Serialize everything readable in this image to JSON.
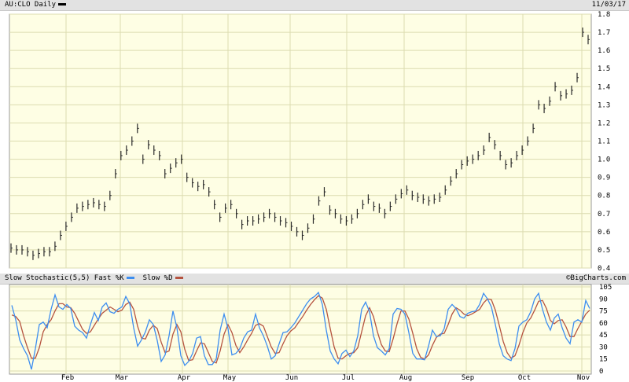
{
  "header": {
    "symbol_label": "AU:CLO Daily",
    "date": "11/03/17",
    "legend_color": "#000000"
  },
  "indicator_header": {
    "title": "Slow Stochastic(5,5)",
    "fast_label": "Fast %K",
    "slow_label": "Slow %D",
    "copyright": "©BigCharts.com"
  },
  "colors": {
    "panel_bg": "#fefee4",
    "grid": "#dcdcb0",
    "price_bar": "#2a2a2a",
    "fast_k": "#3d8ef0",
    "slow_d": "#b5533f"
  },
  "chart_data": [
    {
      "type": "bar",
      "title": "AU:CLO Daily",
      "ylim": [
        0.4,
        1.8
      ],
      "yticks": [
        "0.4",
        "0.5",
        "0.6",
        "0.7",
        "0.8",
        "0.9",
        "1.0",
        "1.1",
        "1.2",
        "1.3",
        "1.4",
        "1.5",
        "1.6",
        "1.7",
        "1.8"
      ],
      "grid": true,
      "series": [
        {
          "name": "AU:CLO",
          "close": [
            0.51,
            0.5,
            0.5,
            0.49,
            0.47,
            0.48,
            0.49,
            0.49,
            0.52,
            0.58,
            0.63,
            0.68,
            0.73,
            0.74,
            0.75,
            0.76,
            0.75,
            0.74,
            0.8,
            0.92,
            1.02,
            1.05,
            1.1,
            1.17,
            1.0,
            1.08,
            1.05,
            1.02,
            0.92,
            0.95,
            0.98,
            1.0,
            0.9,
            0.87,
            0.85,
            0.86,
            0.82,
            0.75,
            0.68,
            0.73,
            0.75,
            0.7,
            0.64,
            0.66,
            0.66,
            0.67,
            0.68,
            0.7,
            0.68,
            0.66,
            0.65,
            0.63,
            0.6,
            0.58,
            0.62,
            0.67,
            0.77,
            0.82,
            0.72,
            0.7,
            0.67,
            0.66,
            0.67,
            0.7,
            0.75,
            0.78,
            0.74,
            0.73,
            0.7,
            0.74,
            0.78,
            0.81,
            0.83,
            0.8,
            0.79,
            0.78,
            0.77,
            0.78,
            0.79,
            0.83,
            0.88,
            0.92,
            0.97,
            0.99,
            1.0,
            1.02,
            1.05,
            1.12,
            1.08,
            1.02,
            0.97,
            0.98,
            1.02,
            1.05,
            1.1,
            1.17,
            1.3,
            1.28,
            1.32,
            1.4,
            1.35,
            1.36,
            1.38,
            1.45,
            1.7,
            1.66
          ]
        }
      ]
    },
    {
      "type": "line",
      "title": "Slow Stochastic(5,5)",
      "ylim": [
        0,
        105
      ],
      "yticks": [
        "0",
        "15",
        "30",
        "45",
        "60",
        "75",
        "90",
        "105"
      ],
      "xticks": [
        "Feb",
        "Mar",
        "Apr",
        "May",
        "Jun",
        "Jul",
        "Aug",
        "Sep",
        "Oct",
        "Nov"
      ],
      "grid": true,
      "series": [
        {
          "name": "Fast %K",
          "values": [
            82,
            64,
            39,
            28,
            19,
            2,
            28,
            58,
            61,
            54,
            77,
            95,
            80,
            77,
            83,
            78,
            56,
            51,
            48,
            41,
            58,
            73,
            63,
            80,
            85,
            74,
            72,
            77,
            80,
            93,
            84,
            54,
            31,
            39,
            49,
            64,
            58,
            38,
            12,
            20,
            44,
            75,
            54,
            19,
            7,
            12,
            22,
            41,
            43,
            19,
            8,
            8,
            15,
            51,
            71,
            53,
            20,
            22,
            28,
            41,
            49,
            51,
            71,
            54,
            44,
            31,
            15,
            19,
            34,
            48,
            49,
            54,
            60,
            68,
            76,
            84,
            90,
            93,
            98,
            83,
            51,
            25,
            15,
            9,
            22,
            26,
            18,
            25,
            44,
            77,
            86,
            74,
            44,
            29,
            25,
            20,
            28,
            71,
            78,
            77,
            71,
            48,
            22,
            15,
            15,
            14,
            31,
            51,
            43,
            44,
            53,
            77,
            83,
            78,
            68,
            66,
            72,
            74,
            75,
            83,
            97,
            90,
            80,
            58,
            34,
            19,
            15,
            13,
            28,
            56,
            61,
            64,
            74,
            90,
            97,
            77,
            61,
            51,
            66,
            71,
            54,
            41,
            34,
            61,
            64,
            61,
            88,
            78
          ]
        },
        {
          "name": "Slow %D",
          "values": [
            70,
            68,
            62,
            44,
            29,
            16,
            16,
            29,
            49,
            58,
            64,
            75,
            84,
            84,
            80,
            79,
            72,
            62,
            52,
            47,
            49,
            57,
            65,
            72,
            76,
            80,
            77,
            74,
            76,
            83,
            86,
            77,
            56,
            41,
            40,
            51,
            57,
            53,
            36,
            23,
            25,
            46,
            58,
            49,
            27,
            13,
            14,
            25,
            35,
            34,
            23,
            12,
            10,
            25,
            46,
            58,
            48,
            32,
            23,
            30,
            39,
            47,
            57,
            59,
            56,
            43,
            30,
            22,
            23,
            34,
            44,
            50,
            54,
            61,
            68,
            76,
            83,
            89,
            94,
            91,
            77,
            53,
            30,
            16,
            15,
            19,
            22,
            23,
            29,
            49,
            69,
            79,
            68,
            49,
            33,
            25,
            24,
            40,
            59,
            75,
            75,
            65,
            47,
            28,
            17,
            15,
            20,
            32,
            42,
            46,
            47,
            58,
            71,
            79,
            76,
            71,
            69,
            71,
            74,
            77,
            85,
            90,
            89,
            76,
            57,
            37,
            23,
            16,
            19,
            32,
            48,
            60,
            66,
            76,
            87,
            88,
            78,
            63,
            59,
            63,
            64,
            55,
            43,
            43,
            53,
            62,
            71,
            76
          ]
        }
      ]
    }
  ]
}
